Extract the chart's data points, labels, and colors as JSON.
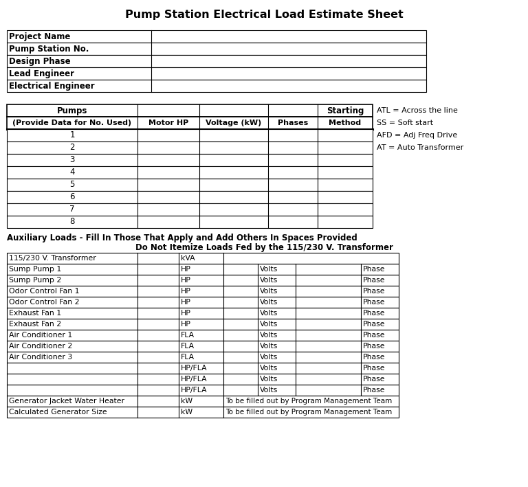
{
  "title": "Pump Station Electrical Load Estimate Sheet",
  "bg_color": "#ffffff",
  "info_rows": [
    "Project Name",
    "Pump Station No.",
    "Design Phase",
    "Lead Engineer",
    "Electrical Engineer"
  ],
  "pump_header2": [
    "(Provide Data for No. Used)",
    "Motor HP",
    "Voltage (kW)",
    "Phases",
    "Method"
  ],
  "pump_numbers": [
    "1",
    "2",
    "3",
    "4",
    "5",
    "6",
    "7",
    "8"
  ],
  "side_notes": [
    "ATL = Across the line",
    "SS = Soft start",
    "AFD = Adj Freq Drive",
    "AT = Auto Transformer"
  ],
  "aux_title1": "Auxiliary Loads - Fill In Those That Apply and Add Others In Spaces Provided",
  "aux_title2": "Do Not Itemize Loads Fed by the 115/230 V. Transformer",
  "aux_rows": [
    {
      "label": "115/230 V. Transformer",
      "unit": "kVA",
      "volts": "",
      "phase": "",
      "merged": ""
    },
    {
      "label": "Sump Pump 1",
      "unit": "HP",
      "volts": "Volts",
      "phase": "Phase",
      "merged": ""
    },
    {
      "label": "Sump Pump 2",
      "unit": "HP",
      "volts": "Volts",
      "phase": "Phase",
      "merged": ""
    },
    {
      "label": "Odor Control Fan 1",
      "unit": "HP",
      "volts": "Volts",
      "phase": "Phase",
      "merged": ""
    },
    {
      "label": "Odor Control Fan 2",
      "unit": "HP",
      "volts": "Volts",
      "phase": "Phase",
      "merged": ""
    },
    {
      "label": "Exhaust Fan 1",
      "unit": "HP",
      "volts": "Volts",
      "phase": "Phase",
      "merged": ""
    },
    {
      "label": "Exhaust Fan 2",
      "unit": "HP",
      "volts": "Volts",
      "phase": "Phase",
      "merged": ""
    },
    {
      "label": "Air Conditioner 1",
      "unit": "FLA",
      "volts": "Volts",
      "phase": "Phase",
      "merged": ""
    },
    {
      "label": "Air Conditioner 2",
      "unit": "FLA",
      "volts": "Volts",
      "phase": "Phase",
      "merged": ""
    },
    {
      "label": "Air Conditioner 3",
      "unit": "FLA",
      "volts": "Volts",
      "phase": "Phase",
      "merged": ""
    },
    {
      "label": "",
      "unit": "HP/FLA",
      "volts": "Volts",
      "phase": "Phase",
      "merged": ""
    },
    {
      "label": "",
      "unit": "HP/FLA",
      "volts": "Volts",
      "phase": "Phase",
      "merged": ""
    },
    {
      "label": "",
      "unit": "HP/FLA",
      "volts": "Volts",
      "phase": "Phase",
      "merged": ""
    },
    {
      "label": "Generator Jacket Water Heater",
      "unit": "kW",
      "volts": "",
      "phase": "",
      "merged": "To be filled out by Program Management Team"
    },
    {
      "label": "Calculated Generator Size",
      "unit": "kW",
      "volts": "",
      "phase": "",
      "merged": "To be filled out by Program Management Team"
    }
  ]
}
